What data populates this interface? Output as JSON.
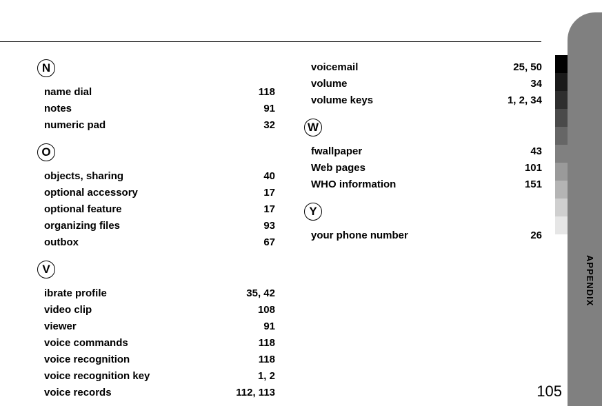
{
  "page_number": "105",
  "side_label": "APPENDIX",
  "gray_steps": [
    "#000000",
    "#1a1a1a",
    "#2e2e2e",
    "#4a4a4a",
    "#666666",
    "#808080",
    "#9a9a9a",
    "#b4b4b4",
    "#cfcfcf",
    "#e6e6e6"
  ],
  "col_left": [
    {
      "letter": "N",
      "entries": [
        {
          "term": "name dial",
          "pages": "118"
        },
        {
          "term": "notes",
          "pages": "91"
        },
        {
          "term": "numeric pad",
          "pages": "32"
        }
      ]
    },
    {
      "letter": "O",
      "entries": [
        {
          "term": "objects, sharing",
          "pages": "40"
        },
        {
          "term": "optional accessory",
          "pages": "17"
        },
        {
          "term": "optional feature",
          "pages": "17"
        },
        {
          "term": "organizing files",
          "pages": "93"
        },
        {
          "term": "outbox",
          "pages": "67"
        }
      ]
    },
    {
      "letter": "V",
      "entries": [
        {
          "term": "ibrate profile",
          "pages": "35, 42"
        },
        {
          "term": "video clip",
          "pages": "108"
        },
        {
          "term": "viewer",
          "pages": "91"
        },
        {
          "term": "voice commands",
          "pages": "118"
        },
        {
          "term": "voice recognition",
          "pages": "118"
        },
        {
          "term": "voice recognition key",
          "pages": "1, 2"
        },
        {
          "term": "voice records",
          "pages": "112, 113"
        }
      ]
    }
  ],
  "col_right": [
    {
      "letter": null,
      "entries": [
        {
          "term": "voicemail",
          "pages": "25, 50"
        },
        {
          "term": "volume",
          "pages": "34"
        },
        {
          "term": "volume keys",
          "pages": "1, 2, 34"
        }
      ]
    },
    {
      "letter": "W",
      "entries": [
        {
          "term": "fwallpaper",
          "pages": "43"
        },
        {
          "term": "Web pages",
          "pages": "101"
        },
        {
          "term": "WHO information",
          "pages": "151"
        }
      ]
    },
    {
      "letter": "Y",
      "entries": [
        {
          "term": "your phone number",
          "pages": "26"
        }
      ]
    }
  ]
}
